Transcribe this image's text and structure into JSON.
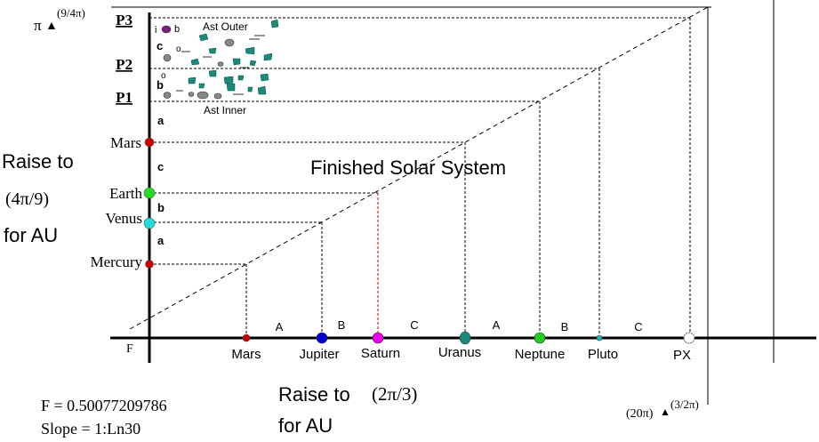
{
  "title": "Finished Solar System",
  "corner_y": {
    "symbol": "π",
    "exponent": "(9/4π)"
  },
  "corner_x": {
    "base": "(20π)",
    "exponent": "(3/2π)"
  },
  "origin_label": "F",
  "left_note": {
    "line1": "Raise to",
    "line2": "(4π/9)",
    "line3": "for AU"
  },
  "bottom_note": {
    "line1": "Raise to",
    "expr": "(2π/3)",
    "line2": "for AU"
  },
  "formula": {
    "f_value": "F = 0.50077209786",
    "slope": "Slope = 1:Ln30"
  },
  "y_levels": [
    {
      "label": "P3",
      "gap": "c",
      "color": "#7b1f7b"
    },
    {
      "label": "P2",
      "gap": "b",
      "color": ""
    },
    {
      "label": "P1",
      "gap": "a",
      "color": ""
    },
    {
      "label": "Mars",
      "gap": "c",
      "color": "#cc0000"
    },
    {
      "label": "Earth",
      "gap": "b",
      "color": "#22dd22"
    },
    {
      "label": "Venus",
      "gap": "a",
      "color": "#22dddd"
    },
    {
      "label": "Mercury",
      "gap": "",
      "color": "#cc0000"
    }
  ],
  "x_planets": [
    {
      "label": "Mars",
      "color": "#cc0000"
    },
    {
      "label": "Jupiter",
      "color": "#0000cc"
    },
    {
      "label": "Saturn",
      "color": "#ee00ee"
    },
    {
      "label": "Uranus",
      "color": "#1a8a7a"
    },
    {
      "label": "Neptune",
      "color": "#22cc22"
    },
    {
      "label": "Pluto",
      "color": "#22bbbb"
    },
    {
      "label": "PX",
      "color": "#ffffff"
    }
  ],
  "x_gaps": [
    "A",
    "B",
    "C",
    "A",
    "B",
    "C"
  ],
  "asteroid_labels": {
    "outer": "Ast  Outer",
    "inner": "Ast Inner"
  },
  "belt_gaps": {
    "outer": [
      "c",
      "o"
    ],
    "inner": [
      "b",
      "o"
    ],
    "top_marks": [
      "i",
      "b"
    ]
  }
}
